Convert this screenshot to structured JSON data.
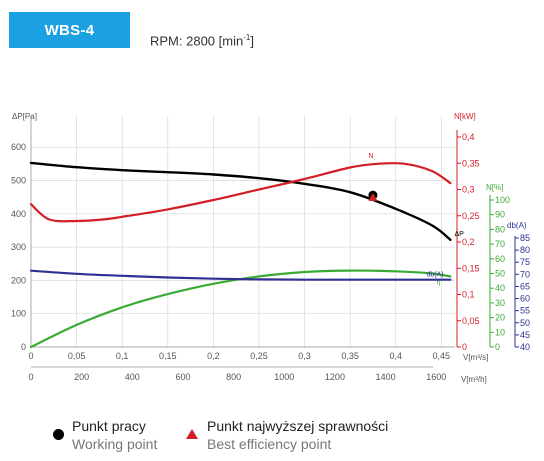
{
  "header": {
    "model": "WBS-4",
    "rpm_text": "RPM: 2800 [min",
    "rpm_sup": "-1",
    "rpm_close": "]"
  },
  "legend": {
    "working_pl": "Punkt pracy",
    "working_en": "Working point",
    "best_pl": "Punkt najwyższej sprawności",
    "best_en": "Best efficiency point"
  },
  "colors": {
    "pressure": "#000000",
    "power": "#d31f26",
    "efficiency": "#3aaa35",
    "noise": "#2e3192",
    "grid": "#d9d9d9"
  },
  "chart_data": {
    "type": "line",
    "x_axes": {
      "flow_m3s": {
        "label": "V[m³/s]",
        "ticks": [
          "0",
          "0,05",
          "0,1",
          "0,15",
          "0,2",
          "0,25",
          "0,3",
          "0,35",
          "0,4",
          "0,45"
        ],
        "range": [
          0,
          0.465
        ]
      },
      "flow_m3h": {
        "label": "V[m³/h]",
        "ticks": [
          "0",
          "200",
          "400",
          "600",
          "800",
          "1000",
          "1200",
          "1400",
          "1600"
        ],
        "range": [
          0,
          1674
        ]
      }
    },
    "y_axes": {
      "pressure": {
        "label": "ΔP[Pa]",
        "ticks": [
          "0",
          "100",
          "200",
          "300",
          "400",
          "500",
          "600"
        ],
        "range": [
          0,
          600
        ]
      },
      "power": {
        "label": "N[kW]",
        "ticks": [
          "0",
          "0,05",
          "0,1",
          "0,15",
          "0,2",
          "0,25",
          "0,3",
          "0,35",
          "0,4"
        ],
        "range": [
          0,
          0.4
        ]
      },
      "efficiency": {
        "label": "N[%]",
        "ticks": [
          "0",
          "10",
          "20",
          "30",
          "40",
          "50",
          "60",
          "70",
          "80",
          "90",
          "100"
        ],
        "range": [
          0,
          100
        ]
      },
      "noise": {
        "label": "db(A)",
        "ticks": [
          "40",
          "45",
          "50",
          "55",
          "60",
          "65",
          "70",
          "75",
          "80",
          "85"
        ],
        "range": [
          40,
          85
        ]
      }
    },
    "series": [
      {
        "name": "ΔP",
        "axis": "pressure",
        "x": [
          0,
          0.05,
          0.1,
          0.15,
          0.2,
          0.25,
          0.3,
          0.35,
          0.4,
          0.44,
          0.46
        ],
        "y": [
          553,
          540,
          531,
          525,
          518,
          507,
          490,
          465,
          415,
          365,
          322
        ]
      },
      {
        "name": "N",
        "axis": "power",
        "x": [
          0,
          0.02,
          0.05,
          0.08,
          0.1,
          0.15,
          0.2,
          0.25,
          0.3,
          0.35,
          0.38,
          0.41,
          0.44,
          0.46
        ],
        "y": [
          0.272,
          0.243,
          0.24,
          0.243,
          0.248,
          0.262,
          0.28,
          0.3,
          0.32,
          0.342,
          0.349,
          0.349,
          0.335,
          0.312
        ]
      },
      {
        "name": "η",
        "axis": "efficiency",
        "x": [
          0,
          0.05,
          0.1,
          0.15,
          0.2,
          0.25,
          0.3,
          0.35,
          0.4,
          0.44,
          0.46
        ],
        "y": [
          0,
          15,
          27,
          36,
          43,
          48,
          51,
          52,
          51.5,
          50,
          48
        ]
      },
      {
        "name": "db(A)",
        "axis": "noise",
        "x": [
          0,
          0.05,
          0.1,
          0.15,
          0.2,
          0.25,
          0.3,
          0.35,
          0.4,
          0.46
        ],
        "y": [
          71.5,
          70.2,
          69.4,
          68.7,
          68.2,
          67.9,
          67.8,
          67.8,
          67.8,
          67.8
        ]
      }
    ],
    "working_point": {
      "x": 0.375,
      "y": 456
    },
    "best_efficiency_point": {
      "x": 0.375,
      "y": 448
    },
    "grid": true
  }
}
